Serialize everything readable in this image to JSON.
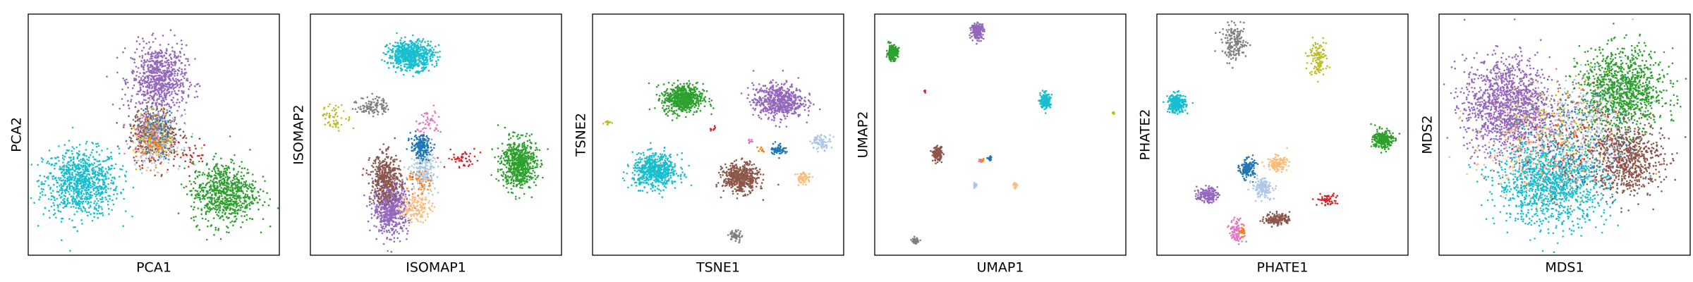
{
  "chart_data": [
    {
      "type": "scatter",
      "xlabel": "PCA1",
      "ylabel": "PCA2",
      "xlim": [
        0,
        100
      ],
      "ylim": [
        0,
        100
      ],
      "series": [
        {
          "color": "#17becf",
          "cx": 21,
          "cy": 30,
          "rx": 15,
          "ry": 14,
          "n": 900
        },
        {
          "color": "#9467bd",
          "cx": 52,
          "cy": 73,
          "rx": 11,
          "ry": 14,
          "n": 750
        },
        {
          "color": "#2ca02c",
          "cx": 78,
          "cy": 26,
          "rx": 13,
          "ry": 13,
          "n": 750
        },
        {
          "color": "#8c564b",
          "cx": 50,
          "cy": 50,
          "rx": 10,
          "ry": 11,
          "n": 350
        },
        {
          "color": "#ffbb78",
          "cx": 50,
          "cy": 48,
          "rx": 8,
          "ry": 10,
          "n": 120
        },
        {
          "color": "#1f77b4",
          "cx": 51,
          "cy": 50,
          "rx": 8,
          "ry": 10,
          "n": 120
        },
        {
          "color": "#aec7e8",
          "cx": 52,
          "cy": 47,
          "rx": 9,
          "ry": 11,
          "n": 140
        },
        {
          "color": "#e377c2",
          "cx": 48,
          "cy": 51,
          "rx": 8,
          "ry": 9,
          "n": 60
        },
        {
          "color": "#7f7f7f",
          "cx": 50,
          "cy": 52,
          "rx": 8,
          "ry": 10,
          "n": 80
        },
        {
          "color": "#bcbd22",
          "cx": 52,
          "cy": 49,
          "rx": 8,
          "ry": 10,
          "n": 60
        },
        {
          "color": "#d62728",
          "cx": 62,
          "cy": 42,
          "rx": 12,
          "ry": 10,
          "n": 40
        },
        {
          "color": "#ff7f0e",
          "cx": 50,
          "cy": 45,
          "rx": 6,
          "ry": 7,
          "n": 40
        }
      ]
    },
    {
      "type": "scatter",
      "xlabel": "ISOMAP1",
      "ylabel": "ISOMAP2",
      "xlim": [
        0,
        100
      ],
      "ylim": [
        0,
        100
      ],
      "series": [
        {
          "color": "#17becf",
          "cx": 40,
          "cy": 83,
          "rx": 9,
          "ry": 6,
          "n": 650
        },
        {
          "color": "#9467bd",
          "cx": 32,
          "cy": 20,
          "rx": 7,
          "ry": 11,
          "n": 650
        },
        {
          "color": "#8c564b",
          "cx": 30,
          "cy": 32,
          "rx": 6,
          "ry": 10,
          "n": 400
        },
        {
          "color": "#2ca02c",
          "cx": 83,
          "cy": 38,
          "rx": 7,
          "ry": 10,
          "n": 650
        },
        {
          "color": "#aec7e8",
          "cx": 45,
          "cy": 35,
          "rx": 5,
          "ry": 8,
          "n": 200
        },
        {
          "color": "#1f77b4",
          "cx": 44,
          "cy": 45,
          "rx": 4,
          "ry": 5,
          "n": 200
        },
        {
          "color": "#ffbb78",
          "cx": 42,
          "cy": 20,
          "rx": 6,
          "ry": 6,
          "n": 150
        },
        {
          "color": "#7f7f7f",
          "cx": 25,
          "cy": 62,
          "rx": 6,
          "ry": 4,
          "n": 110
        },
        {
          "color": "#bcbd22",
          "cx": 10,
          "cy": 57,
          "rx": 6,
          "ry": 5,
          "n": 60
        },
        {
          "color": "#d62728",
          "cx": 61,
          "cy": 40,
          "rx": 7,
          "ry": 4,
          "n": 50
        },
        {
          "color": "#e377c2",
          "cx": 47,
          "cy": 55,
          "rx": 5,
          "ry": 6,
          "n": 50
        },
        {
          "color": "#ff7f0e",
          "cx": 44,
          "cy": 30,
          "rx": 5,
          "ry": 5,
          "n": 40
        }
      ]
    },
    {
      "type": "scatter",
      "xlabel": "TSNE1",
      "ylabel": "TSNE2",
      "xlim": [
        0,
        100
      ],
      "ylim": [
        0,
        100
      ],
      "series": [
        {
          "color": "#2ca02c",
          "cx": 36,
          "cy": 65,
          "rx": 8,
          "ry": 6,
          "n": 600
        },
        {
          "color": "#9467bd",
          "cx": 74,
          "cy": 64,
          "rx": 10,
          "ry": 7,
          "n": 600
        },
        {
          "color": "#17becf",
          "cx": 25,
          "cy": 35,
          "rx": 9,
          "ry": 7,
          "n": 600
        },
        {
          "color": "#8c564b",
          "cx": 59,
          "cy": 32,
          "rx": 7,
          "ry": 6,
          "n": 500
        },
        {
          "color": "#ffbb78",
          "cx": 84,
          "cy": 32,
          "rx": 3,
          "ry": 2.5,
          "n": 60
        },
        {
          "color": "#aec7e8",
          "cx": 91,
          "cy": 47,
          "rx": 4,
          "ry": 3,
          "n": 80
        },
        {
          "color": "#1f77b4",
          "cx": 74,
          "cy": 44,
          "rx": 3,
          "ry": 2.5,
          "n": 60
        },
        {
          "color": "#7f7f7f",
          "cx": 57,
          "cy": 8,
          "rx": 2.5,
          "ry": 2.5,
          "n": 50
        },
        {
          "color": "#bcbd22",
          "cx": 6,
          "cy": 55,
          "rx": 1.5,
          "ry": 1,
          "n": 15
        },
        {
          "color": "#d62728",
          "cx": 48,
          "cy": 53,
          "rx": 1.5,
          "ry": 1.5,
          "n": 8
        },
        {
          "color": "#e377c2",
          "cx": 63,
          "cy": 47,
          "rx": 1.5,
          "ry": 1.5,
          "n": 10
        },
        {
          "color": "#ff7f0e",
          "cx": 67,
          "cy": 44,
          "rx": 1.5,
          "ry": 1,
          "n": 8
        }
      ]
    },
    {
      "type": "scatter",
      "xlabel": "UMAP1",
      "ylabel": "UMAP2",
      "xlim": [
        0,
        100
      ],
      "ylim": [
        0,
        100
      ],
      "series": [
        {
          "color": "#2ca02c",
          "cx": 7,
          "cy": 84,
          "rx": 2.2,
          "ry": 3,
          "n": 200
        },
        {
          "color": "#9467bd",
          "cx": 41,
          "cy": 93,
          "rx": 2.5,
          "ry": 3.2,
          "n": 200
        },
        {
          "color": "#17becf",
          "cx": 68,
          "cy": 64,
          "rx": 2,
          "ry": 3,
          "n": 200
        },
        {
          "color": "#8c564b",
          "cx": 25,
          "cy": 42,
          "rx": 1.8,
          "ry": 2.8,
          "n": 150
        },
        {
          "color": "#7f7f7f",
          "cx": 16,
          "cy": 6,
          "rx": 1.2,
          "ry": 1.2,
          "n": 40
        },
        {
          "color": "#bcbd22",
          "cx": 95,
          "cy": 59,
          "rx": 0.6,
          "ry": 0.6,
          "n": 10
        },
        {
          "color": "#d62728",
          "cx": 20,
          "cy": 68,
          "rx": 0.6,
          "ry": 0.6,
          "n": 6
        },
        {
          "color": "#1f77b4",
          "cx": 46,
          "cy": 40,
          "rx": 0.8,
          "ry": 0.9,
          "n": 20
        },
        {
          "color": "#e377c2",
          "cx": 42,
          "cy": 39,
          "rx": 0.6,
          "ry": 0.8,
          "n": 10
        },
        {
          "color": "#ff7f0e",
          "cx": 43,
          "cy": 39,
          "rx": 0.5,
          "ry": 0.6,
          "n": 10
        },
        {
          "color": "#aec7e8",
          "cx": 40,
          "cy": 29,
          "rx": 0.8,
          "ry": 1.2,
          "n": 25
        },
        {
          "color": "#ffbb78",
          "cx": 56,
          "cy": 29,
          "rx": 0.8,
          "ry": 1.2,
          "n": 20
        }
      ]
    },
    {
      "type": "scatter",
      "xlabel": "PHATE1",
      "ylabel": "PHATE2",
      "xlim": [
        0,
        100
      ],
      "ylim": [
        0,
        100
      ],
      "series": [
        {
          "color": "#17becf",
          "cx": 8,
          "cy": 63,
          "rx": 3.5,
          "ry": 4,
          "n": 250
        },
        {
          "color": "#7f7f7f",
          "cx": 31,
          "cy": 88,
          "rx": 5,
          "ry": 7,
          "n": 180
        },
        {
          "color": "#bcbd22",
          "cx": 64,
          "cy": 82,
          "rx": 3.5,
          "ry": 7,
          "n": 120
        },
        {
          "color": "#2ca02c",
          "cx": 90,
          "cy": 48,
          "rx": 4,
          "ry": 4,
          "n": 250
        },
        {
          "color": "#1f77b4",
          "cx": 36,
          "cy": 36,
          "rx": 3,
          "ry": 4,
          "n": 150
        },
        {
          "color": "#ffbb78",
          "cx": 48,
          "cy": 38,
          "rx": 4,
          "ry": 3,
          "n": 120
        },
        {
          "color": "#aec7e8",
          "cx": 42,
          "cy": 28,
          "rx": 4,
          "ry": 4,
          "n": 150
        },
        {
          "color": "#9467bd",
          "cx": 20,
          "cy": 25,
          "rx": 4,
          "ry": 3,
          "n": 150
        },
        {
          "color": "#8c564b",
          "cx": 48,
          "cy": 15,
          "rx": 5,
          "ry": 2.5,
          "n": 150
        },
        {
          "color": "#e377c2",
          "cx": 32,
          "cy": 10,
          "rx": 3,
          "ry": 5,
          "n": 100
        },
        {
          "color": "#d62728",
          "cx": 68,
          "cy": 23,
          "rx": 4,
          "ry": 2.5,
          "n": 60
        },
        {
          "color": "#ff7f0e",
          "cx": 34,
          "cy": 10,
          "rx": 1.5,
          "ry": 2,
          "n": 20
        }
      ]
    },
    {
      "type": "scatter",
      "xlabel": "MDS1",
      "ylabel": "MDS2",
      "xlim": [
        0,
        100
      ],
      "ylim": [
        0,
        100
      ],
      "series": [
        {
          "color": "#9467bd",
          "cx": 27,
          "cy": 62,
          "rx": 17,
          "ry": 20,
          "n": 1300
        },
        {
          "color": "#2ca02c",
          "cx": 73,
          "cy": 68,
          "rx": 17,
          "ry": 17,
          "n": 1100
        },
        {
          "color": "#17becf",
          "cx": 45,
          "cy": 30,
          "rx": 22,
          "ry": 17,
          "n": 1300
        },
        {
          "color": "#8c564b",
          "cx": 75,
          "cy": 40,
          "rx": 14,
          "ry": 15,
          "n": 700
        },
        {
          "color": "#aec7e8",
          "cx": 58,
          "cy": 55,
          "rx": 20,
          "ry": 20,
          "n": 250
        },
        {
          "color": "#ffbb78",
          "cx": 35,
          "cy": 45,
          "rx": 22,
          "ry": 22,
          "n": 200
        },
        {
          "color": "#1f77b4",
          "cx": 55,
          "cy": 50,
          "rx": 20,
          "ry": 20,
          "n": 150
        },
        {
          "color": "#e377c2",
          "cx": 48,
          "cy": 50,
          "rx": 22,
          "ry": 22,
          "n": 100
        },
        {
          "color": "#7f7f7f",
          "cx": 50,
          "cy": 50,
          "rx": 24,
          "ry": 24,
          "n": 120
        },
        {
          "color": "#bcbd22",
          "cx": 50,
          "cy": 50,
          "rx": 24,
          "ry": 24,
          "n": 100
        },
        {
          "color": "#d62728",
          "cx": 55,
          "cy": 45,
          "rx": 22,
          "ry": 22,
          "n": 60
        },
        {
          "color": "#ff7f0e",
          "cx": 50,
          "cy": 48,
          "rx": 20,
          "ry": 20,
          "n": 60
        }
      ]
    }
  ]
}
